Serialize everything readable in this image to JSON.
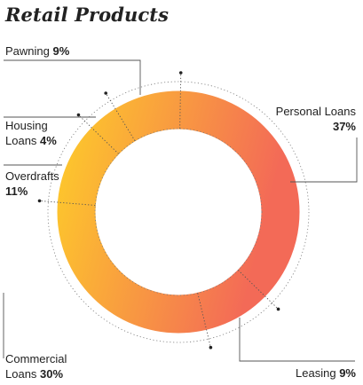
{
  "chart_data": {
    "type": "pie",
    "title": "Retail Products",
    "categories": [
      "Personal Loans",
      "Leasing",
      "Commercial Loans",
      "Overdrafts",
      "Housing Loans",
      "Pawning"
    ],
    "values": [
      37,
      9,
      30,
      11,
      4,
      9
    ],
    "value_labels": [
      "37%",
      "9%",
      "30%",
      "11%",
      "4%",
      "9%"
    ],
    "colors": {
      "gradient_start": "#fdc52d",
      "gradient_end": "#f36a57",
      "leader_line": "#555555"
    }
  }
}
